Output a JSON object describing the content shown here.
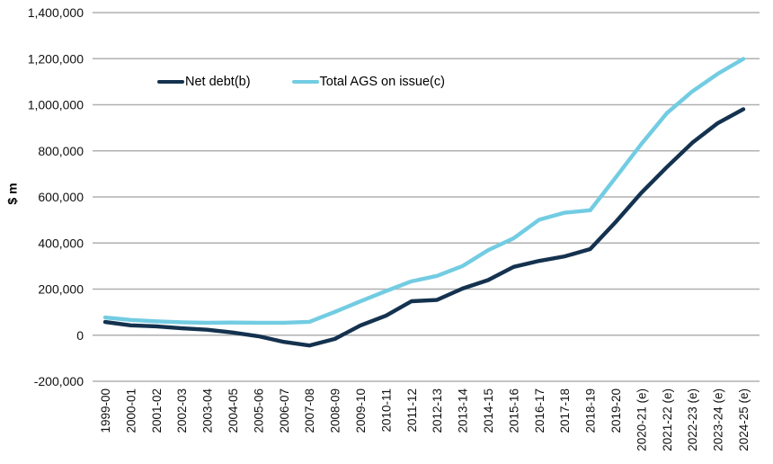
{
  "chart_data": {
    "type": "line",
    "title": "",
    "ylabel": "$ m",
    "xlabel": "",
    "categories": [
      "1999-00",
      "2000-01",
      "2001-02",
      "2002-03",
      "2003-04",
      "2004-05",
      "2005-06",
      "2006-07",
      "2007-08",
      "2008-09",
      "2009-10",
      "2010-11",
      "2011-12",
      "2012-13",
      "2013-14",
      "2014-15",
      "2015-16",
      "2016-17",
      "2017-18",
      "2018-19",
      "2019-20",
      "2020-21 (e)",
      "2021-22 (e)",
      "2022-23 (e)",
      "2023-24 (e)",
      "2024-25 (e)"
    ],
    "series": [
      {
        "name": "Net debt(b)",
        "color": "#14324f",
        "values": [
          57400,
          42700,
          38200,
          29800,
          23500,
          11500,
          -4500,
          -29200,
          -44800,
          -16100,
          42300,
          84600,
          147300,
          153000,
          202500,
          239000,
          296400,
          322300,
          342000,
          373600,
          491200,
          617500,
          729000,
          835000,
          920400,
          980600
        ]
      },
      {
        "name": "Total AGS on issue(c)",
        "color": "#72cce2",
        "values": [
          77000,
          66000,
          60000,
          56000,
          54000,
          55000,
          54000,
          54000,
          58000,
          101100,
          147100,
          191300,
          233700,
          257400,
          300000,
          368700,
          420400,
          501000,
          531500,
          542000,
          684300,
          829000,
          963000,
          1058000,
          1134500,
          1199000
        ]
      }
    ],
    "ylim": [
      -200000,
      1400000
    ],
    "ytick_step": 200000,
    "ytick_labels": [
      "-200,000",
      "0",
      "200,000",
      "400,000",
      "600,000",
      "800,000",
      "1,000,000",
      "1,200,000",
      "1,400,000"
    ],
    "grid": "horizontal",
    "gridline_color": "#b0b0b0",
    "tick_label_color": "#111111",
    "legend_position": "top-inside",
    "x_tick_label_rotation": -90
  }
}
